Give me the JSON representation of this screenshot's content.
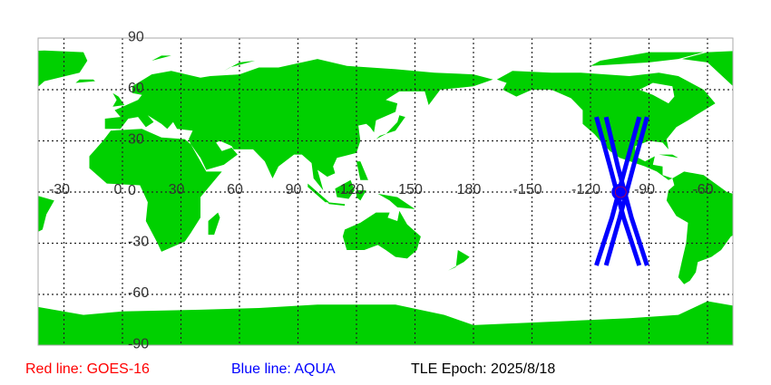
{
  "map": {
    "land_color": "#00d000",
    "grid_color": "#222222",
    "lon_range": [
      -43,
      313
    ],
    "lat_range": [
      -90,
      90
    ],
    "lon_labels": [
      {
        "lon": -30,
        "text": "-30"
      },
      {
        "lon": 0,
        "text": "0"
      },
      {
        "lon": 30,
        "text": "30"
      },
      {
        "lon": 60,
        "text": "60"
      },
      {
        "lon": 90,
        "text": "90"
      },
      {
        "lon": 120,
        "text": "120"
      },
      {
        "lon": 150,
        "text": "150"
      },
      {
        "lon": 180,
        "text": "180"
      },
      {
        "lon": 210,
        "text": "-150"
      },
      {
        "lon": 240,
        "text": "-120"
      },
      {
        "lon": 270,
        "text": "-90"
      },
      {
        "lon": 300,
        "text": "-60"
      }
    ],
    "lat_labels": [
      {
        "lat": 90,
        "text": "90"
      },
      {
        "lat": 60,
        "text": "60"
      },
      {
        "lat": 30,
        "text": "30"
      },
      {
        "lat": 0,
        "text": "0"
      },
      {
        "lat": -30,
        "text": "-30"
      },
      {
        "lat": -60,
        "text": "-60"
      },
      {
        "lat": -90,
        "text": "-90"
      }
    ],
    "land": [
      [
        [
          -17,
          21
        ],
        [
          -10,
          30
        ],
        [
          -6,
          36
        ],
        [
          10,
          37
        ],
        [
          20,
          32
        ],
        [
          32,
          31
        ],
        [
          35,
          28
        ],
        [
          43,
          12
        ],
        [
          51,
          12
        ],
        [
          40,
          -3
        ],
        [
          40,
          -15
        ],
        [
          35,
          -24
        ],
        [
          32,
          -29
        ],
        [
          20,
          -35
        ],
        [
          18,
          -30
        ],
        [
          12,
          -17
        ],
        [
          13,
          -6
        ],
        [
          9,
          4
        ],
        [
          -8,
          5
        ],
        [
          -17,
          14
        ]
      ],
      [
        [
          -9,
          37
        ],
        [
          -9,
          43
        ],
        [
          -1,
          44
        ],
        [
          -4,
          48
        ],
        [
          2,
          51
        ],
        [
          8,
          54
        ],
        [
          10,
          57
        ],
        [
          5,
          58
        ],
        [
          5,
          62
        ],
        [
          15,
          69
        ],
        [
          25,
          71
        ],
        [
          40,
          67
        ],
        [
          45,
          68
        ],
        [
          60,
          69
        ],
        [
          70,
          73
        ],
        [
          80,
          73
        ],
        [
          100,
          78
        ],
        [
          115,
          74
        ],
        [
          140,
          72
        ],
        [
          160,
          70
        ],
        [
          180,
          69
        ],
        [
          190,
          66
        ],
        [
          180,
          62
        ],
        [
          163,
          60
        ],
        [
          157,
          51
        ],
        [
          155,
          59
        ],
        [
          142,
          59
        ],
        [
          135,
          54
        ],
        [
          141,
          52
        ],
        [
          140,
          47
        ],
        [
          130,
          42
        ],
        [
          129,
          35
        ],
        [
          127,
          38
        ],
        [
          125,
          40
        ],
        [
          121,
          39
        ],
        [
          122,
          30
        ],
        [
          120,
          23
        ],
        [
          110,
          20
        ],
        [
          108,
          15
        ],
        [
          109,
          11
        ],
        [
          105,
          9
        ],
        [
          100,
          13
        ],
        [
          103,
          1
        ],
        [
          98,
          8
        ],
        [
          97,
          17
        ],
        [
          92,
          22
        ],
        [
          88,
          22
        ],
        [
          80,
          15
        ],
        [
          77,
          8
        ],
        [
          73,
          18
        ],
        [
          67,
          25
        ],
        [
          57,
          25
        ],
        [
          56,
          27
        ],
        [
          50,
          30
        ],
        [
          48,
          29
        ],
        [
          51,
          24
        ],
        [
          56,
          26
        ],
        [
          59,
          22
        ],
        [
          52,
          16
        ],
        [
          43,
          13
        ],
        [
          40,
          20
        ],
        [
          35,
          28
        ],
        [
          34,
          31
        ],
        [
          36,
          36
        ],
        [
          28,
          37
        ],
        [
          26,
          41
        ],
        [
          23,
          37
        ],
        [
          20,
          40
        ],
        [
          13,
          45
        ],
        [
          16,
          41
        ],
        [
          12,
          38
        ],
        [
          8,
          44
        ],
        [
          3,
          43
        ],
        [
          -1,
          37
        ]
      ],
      [
        [
          -168,
          66
        ],
        [
          -160,
          71
        ],
        [
          -140,
          70
        ],
        [
          -125,
          70
        ],
        [
          -100,
          68
        ],
        [
          -85,
          70
        ],
        [
          -75,
          68
        ],
        [
          -62,
          60
        ],
        [
          -56,
          52
        ],
        [
          -66,
          45
        ],
        [
          -70,
          42
        ],
        [
          -76,
          38
        ],
        [
          -81,
          31
        ],
        [
          -80,
          25
        ],
        [
          -83,
          29
        ],
        [
          -90,
          30
        ],
        [
          -97,
          27
        ],
        [
          -97,
          21
        ],
        [
          -92,
          18
        ],
        [
          -87,
          21
        ],
        [
          -88,
          16
        ],
        [
          -83,
          15
        ],
        [
          -83,
          10
        ],
        [
          -78,
          8
        ],
        [
          -80,
          7
        ],
        [
          -86,
          12
        ],
        [
          -92,
          15
        ],
        [
          -105,
          20
        ],
        [
          -110,
          24
        ],
        [
          -115,
          30
        ],
        [
          -118,
          34
        ],
        [
          -124,
          40
        ],
        [
          -124,
          48
        ],
        [
          -130,
          55
        ],
        [
          -140,
          60
        ],
        [
          -150,
          60
        ],
        [
          -158,
          56
        ],
        [
          -165,
          60
        ],
        [
          -163,
          64
        ]
      ],
      [
        [
          -120,
          74
        ],
        [
          -90,
          76
        ],
        [
          -75,
          78
        ],
        [
          -62,
          82
        ],
        [
          -90,
          82
        ],
        [
          -115,
          77
        ]
      ],
      [
        [
          -73,
          78
        ],
        [
          -60,
          76
        ],
        [
          -45,
          60
        ],
        [
          -40,
          65
        ],
        [
          -22,
          70
        ],
        [
          -18,
          77
        ],
        [
          -20,
          82
        ],
        [
          -40,
          83
        ],
        [
          -60,
          82
        ]
      ],
      [
        [
          -78,
          8
        ],
        [
          -72,
          12
        ],
        [
          -62,
          10
        ],
        [
          -50,
          0
        ],
        [
          -35,
          -5
        ],
        [
          -39,
          -13
        ],
        [
          -41,
          -22
        ],
        [
          -48,
          -26
        ],
        [
          -53,
          -34
        ],
        [
          -58,
          -38
        ],
        [
          -65,
          -41
        ],
        [
          -66,
          -47
        ],
        [
          -69,
          -52
        ],
        [
          -72,
          -54
        ],
        [
          -75,
          -50
        ],
        [
          -73,
          -40
        ],
        [
          -71,
          -30
        ],
        [
          -70,
          -18
        ],
        [
          -76,
          -14
        ],
        [
          -81,
          -5
        ],
        [
          -80,
          1
        ],
        [
          -77,
          4
        ]
      ],
      [
        [
          114,
          -22
        ],
        [
          122,
          -18
        ],
        [
          130,
          -12
        ],
        [
          137,
          -12
        ],
        [
          136,
          -15
        ],
        [
          141,
          -17
        ],
        [
          142,
          -11
        ],
        [
          146,
          -19
        ],
        [
          153,
          -26
        ],
        [
          151,
          -34
        ],
        [
          146,
          -39
        ],
        [
          140,
          -38
        ],
        [
          135,
          -34
        ],
        [
          131,
          -31
        ],
        [
          124,
          -34
        ],
        [
          115,
          -34
        ],
        [
          113,
          -26
        ]
      ],
      [
        [
          -180,
          -90
        ],
        [
          180,
          -90
        ],
        [
          180,
          -78
        ],
        [
          165,
          -72
        ],
        [
          140,
          -66
        ],
        [
          100,
          -66
        ],
        [
          70,
          -68
        ],
        [
          40,
          -69
        ],
        [
          0,
          -70
        ],
        [
          -20,
          -72
        ],
        [
          -60,
          -64
        ],
        [
          -75,
          -72
        ],
        [
          -100,
          -74
        ],
        [
          -140,
          -76
        ],
        [
          -180,
          -78
        ]
      ],
      [
        [
          95,
          5
        ],
        [
          106,
          -6
        ],
        [
          104,
          -6
        ],
        [
          95,
          3
        ]
      ],
      [
        [
          109,
          2
        ],
        [
          117,
          7
        ],
        [
          119,
          1
        ],
        [
          116,
          -4
        ],
        [
          110,
          -3
        ]
      ],
      [
        [
          131,
          -1
        ],
        [
          141,
          -3
        ],
        [
          150,
          -10
        ],
        [
          141,
          -9
        ],
        [
          137,
          -5
        ]
      ],
      [
        [
          105,
          -6
        ],
        [
          114,
          -7
        ],
        [
          114,
          -8
        ],
        [
          106,
          -7
        ]
      ],
      [
        [
          120,
          1
        ],
        [
          125,
          1
        ],
        [
          122,
          -5
        ],
        [
          120,
          -3
        ]
      ],
      [
        [
          130,
          31
        ],
        [
          135,
          34
        ],
        [
          141,
          41
        ],
        [
          142,
          45
        ],
        [
          145,
          44
        ],
        [
          140,
          36
        ],
        [
          132,
          33
        ]
      ],
      [
        [
          -5,
          50
        ],
        [
          1,
          51
        ],
        [
          -2,
          56
        ],
        [
          -5,
          58
        ],
        [
          -3,
          54
        ]
      ],
      [
        [
          -24,
          64
        ],
        [
          -14,
          65
        ],
        [
          -15,
          66
        ],
        [
          -22,
          66
        ]
      ],
      [
        [
          44,
          -25
        ],
        [
          47,
          -25
        ],
        [
          50,
          -15
        ],
        [
          49,
          -12
        ],
        [
          44,
          -17
        ]
      ],
      [
        [
          172,
          -34
        ],
        [
          178,
          -38
        ],
        [
          175,
          -41
        ],
        [
          167,
          -46
        ],
        [
          171,
          -44
        ]
      ],
      [
        [
          -85,
          22
        ],
        [
          -75,
          20
        ],
        [
          -78,
          22
        ]
      ],
      [
        [
          120,
          18
        ],
        [
          122,
          18
        ],
        [
          126,
          7
        ],
        [
          122,
          7
        ]
      ],
      [
        [
          15,
          77
        ],
        [
          25,
          80
        ],
        [
          20,
          80
        ]
      ],
      [
        [
          52,
          71
        ],
        [
          60,
          76
        ],
        [
          68,
          77
        ],
        [
          55,
          73
        ]
      ]
    ],
    "hudson_bay": [
      [
        -95,
        60
      ],
      [
        -88,
        57
      ],
      [
        -80,
        52
      ],
      [
        -77,
        56
      ],
      [
        -78,
        62
      ],
      [
        -88,
        64
      ]
    ]
  },
  "tracks": {
    "color": "#0000ff",
    "lines": [
      [
        [
          -117,
          44
        ],
        [
          -110,
          15
        ],
        [
          -103,
          -15
        ],
        [
          -95,
          -43
        ]
      ],
      [
        [
          -112,
          44
        ],
        [
          -106,
          15
        ],
        [
          -99,
          -15
        ],
        [
          -91,
          -43
        ]
      ],
      [
        [
          -95,
          44
        ],
        [
          -102,
          15
        ],
        [
          -109,
          -15
        ],
        [
          -117,
          -43
        ]
      ],
      [
        [
          -91,
          44
        ],
        [
          -98,
          15
        ],
        [
          -105,
          -15
        ],
        [
          -112,
          -43
        ]
      ]
    ],
    "marker": {
      "lon": -105,
      "lat": 0
    }
  },
  "legend": {
    "red_label": "Red line: GOES-16",
    "red_color": "#ff0000",
    "blue_label": "Blue line: AQUA",
    "blue_color": "#0000ff",
    "epoch_label": "TLE Epoch: 2025/8/18"
  }
}
